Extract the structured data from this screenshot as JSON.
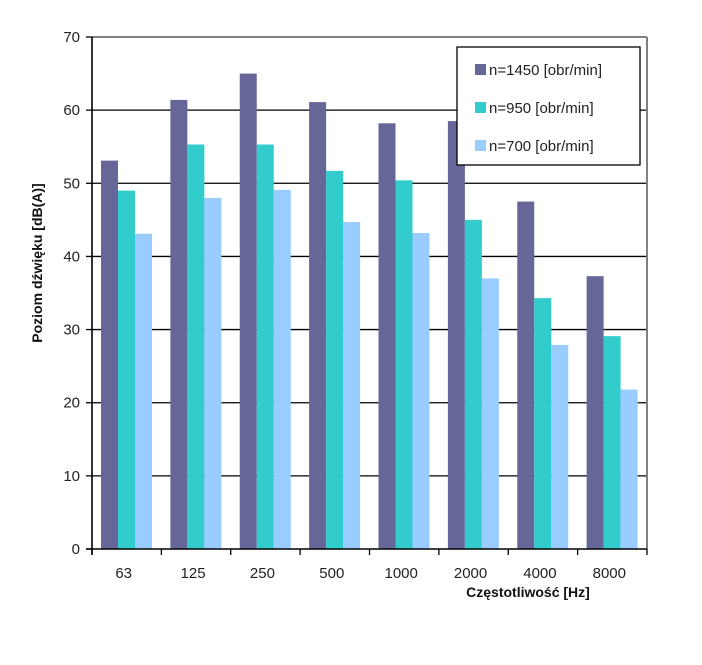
{
  "chart_data": {
    "type": "bar",
    "title": "",
    "xlabel": "Częstotliwość [Hz]",
    "ylabel": "Poziom dźwięku [dB(A)]",
    "ylim": [
      0,
      70
    ],
    "yticks": [
      0,
      10,
      20,
      30,
      40,
      50,
      60,
      70
    ],
    "grid": true,
    "legend_position": "top-right",
    "categories": [
      "63",
      "125",
      "250",
      "500",
      "1000",
      "2000",
      "4000",
      "8000"
    ],
    "series": [
      {
        "name": "n=1450 [obr/min]",
        "color": "#666699",
        "values": [
          53.1,
          61.4,
          65.0,
          61.1,
          58.2,
          58.5,
          47.5,
          37.3
        ]
      },
      {
        "name": "n=950 [obr/min]",
        "color": "#33CCCC",
        "values": [
          49.0,
          55.3,
          55.3,
          51.7,
          50.4,
          45.0,
          34.3,
          29.1
        ]
      },
      {
        "name": "n=700 [obr/min]",
        "color": "#99CCFF",
        "values": [
          43.1,
          48.0,
          49.1,
          44.7,
          43.2,
          37.0,
          27.9,
          21.8
        ]
      }
    ]
  }
}
